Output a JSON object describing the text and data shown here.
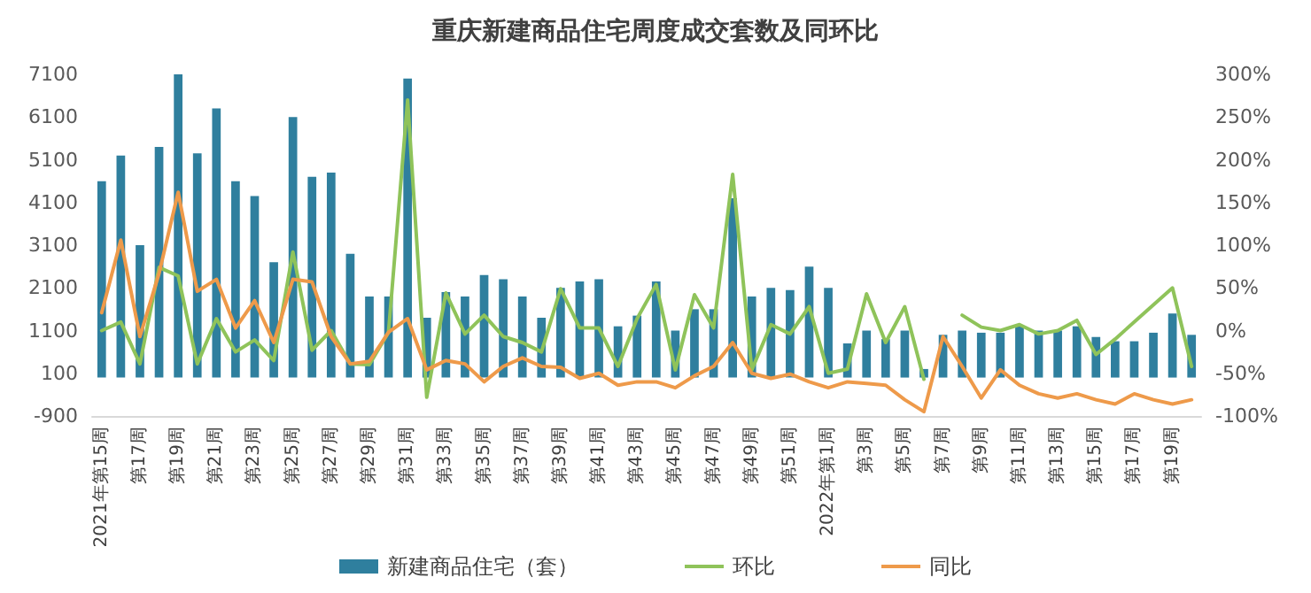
{
  "chart_data": {
    "type": "bar",
    "title": "重庆新建商品住宅周度成交套数及同环比",
    "categories": [
      "2021年第15周",
      null,
      "第17周",
      null,
      "第19周",
      null,
      "第21周",
      null,
      "第23周",
      null,
      "第25周",
      null,
      "第27周",
      null,
      "第29周",
      null,
      "第31周",
      null,
      "第33周",
      null,
      "第35周",
      null,
      "第37周",
      null,
      "第39周",
      null,
      "第41周",
      null,
      "第43周",
      null,
      "第45周",
      null,
      "第47周",
      null,
      "第49周",
      null,
      "第51周",
      null,
      "2022年第1周",
      null,
      "第3周",
      null,
      "第5周",
      null,
      "第7周",
      null,
      "第9周",
      null,
      "第11周",
      null,
      "第13周",
      null,
      "第15周",
      null,
      "第17周",
      null,
      "第19周",
      null
    ],
    "series": [
      {
        "name": "新建商品住宅（套）",
        "color": "#2f7f9e",
        "values": [
          4600,
          5200,
          3100,
          5400,
          7100,
          5250,
          6300,
          4600,
          4250,
          2700,
          6100,
          4700,
          4800,
          2900,
          1900,
          1900,
          7000,
          1400,
          2000,
          1900,
          2400,
          2300,
          1900,
          1400,
          2100,
          2250,
          2300,
          1200,
          1450,
          2250,
          1100,
          1600,
          1600,
          4200,
          1900,
          2100,
          2050,
          2600,
          2100,
          800,
          1100,
          900,
          1100,
          200,
          1000,
          1100,
          1050,
          1050,
          1200,
          1100,
          1100,
          1200,
          950,
          850,
          850,
          1050,
          1500,
          1000
        ]
      },
      {
        "name": "环比",
        "type": "line",
        "axis": "y2",
        "color": "#8fc35a",
        "values": [
          0,
          10,
          -39,
          74,
          64,
          -39,
          14,
          -25,
          -11,
          -35,
          92,
          -23,
          0,
          -39,
          -40,
          -2,
          270,
          -78,
          44,
          -4,
          18,
          -7,
          -14,
          -25,
          49,
          3,
          3,
          -42,
          14,
          54,
          -46,
          42,
          3,
          183,
          -46,
          7,
          -4,
          28,
          -50,
          -45,
          43,
          -14,
          28,
          -57,
          null,
          18,
          4,
          0,
          7,
          -4,
          0,
          12,
          -28,
          -10,
          10,
          30,
          50,
          -42
        ]
      },
      {
        "name": "同比",
        "type": "line",
        "axis": "y2",
        "color": "#ee9a4a",
        "values": [
          21,
          106,
          -7,
          67,
          162,
          46,
          60,
          3,
          35,
          -14,
          60,
          57,
          -7,
          -39,
          -36,
          -2,
          14,
          -46,
          -35,
          -39,
          -60,
          -42,
          -32,
          -42,
          -43,
          -56,
          -50,
          -64,
          -60,
          -60,
          -67,
          -53,
          -42,
          -14,
          -50,
          -56,
          -51,
          -60,
          -67,
          -60,
          -62,
          -64,
          -81,
          -95,
          -7,
          -42,
          -79,
          -46,
          -64,
          -74,
          -79,
          -74,
          -81,
          -86,
          -74,
          -81,
          -86,
          -81
        ]
      }
    ],
    "ylim": [
      -900,
      7100
    ],
    "yticks": [
      -900,
      100,
      1100,
      2100,
      3100,
      4100,
      5100,
      6100,
      7100
    ],
    "y2lim": [
      -100,
      300
    ],
    "y2ticks": [
      {
        "value": -100,
        "label": "-100%"
      },
      {
        "value": -50,
        "label": "-50%"
      },
      {
        "value": 0,
        "label": "0%"
      },
      {
        "value": 50,
        "label": "50%"
      },
      {
        "value": 100,
        "label": "100%"
      },
      {
        "value": 150,
        "label": "150%"
      },
      {
        "value": 200,
        "label": "200%"
      },
      {
        "value": 250,
        "label": "250%"
      },
      {
        "value": 300,
        "label": "300%"
      }
    ],
    "grid": false,
    "legend": "bottom",
    "marker": "none",
    "line_style": "solid"
  }
}
